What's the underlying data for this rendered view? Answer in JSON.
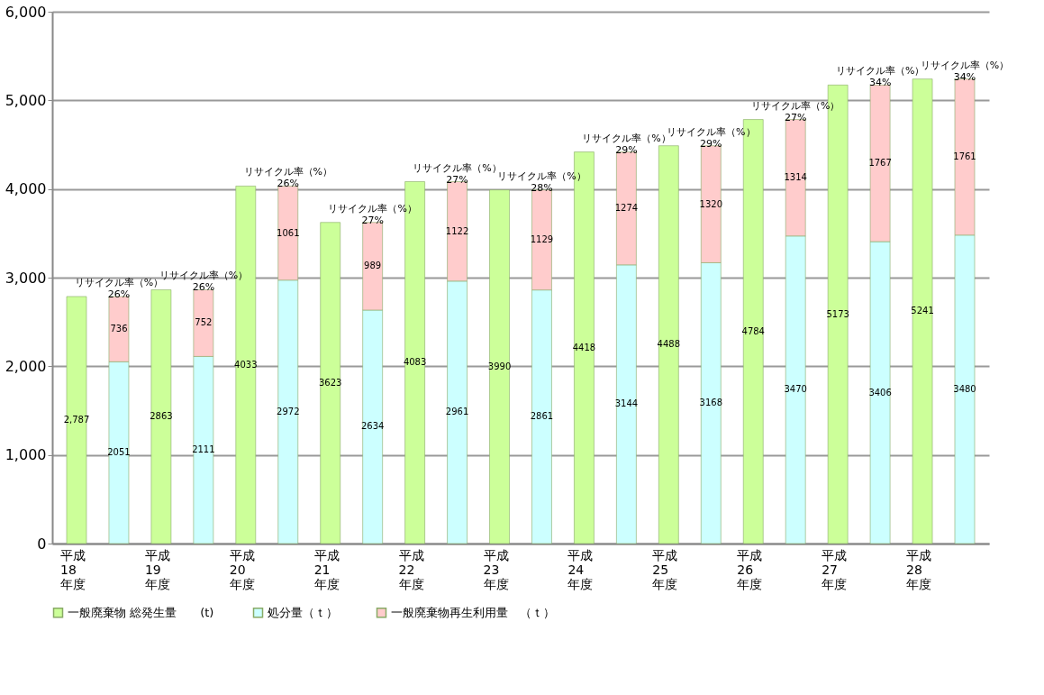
{
  "chart_data": {
    "type": "bar",
    "stacked": true,
    "categories": [
      "平成\n18\n年度",
      null,
      "平成\n19\n年度",
      null,
      "平成\n20\n年度",
      null,
      "平成\n21\n年度",
      null,
      "平成\n22\n年度",
      null,
      "平成\n23\n年度",
      null,
      "平成\n24\n年度",
      null,
      "平成\n25\n年度",
      null,
      "平成\n26\n年度",
      null,
      "平成\n27\n年度",
      null,
      "平成\n28\n年度",
      null
    ],
    "series": [
      {
        "name": "一般廃棄物 総発生量　　(t)",
        "color": "#ccff99",
        "values": [
          2787,
          null,
          2863,
          null,
          4033,
          null,
          3623,
          null,
          4083,
          null,
          3990,
          null,
          4418,
          null,
          4488,
          null,
          4784,
          null,
          5173,
          null,
          5241,
          null
        ],
        "value_labels": [
          "2,787",
          null,
          "2863",
          null,
          "4033",
          null,
          "3623",
          null,
          "4083",
          null,
          "3990",
          null,
          "4418",
          null,
          "4488",
          null,
          "4784",
          null,
          "5173",
          null,
          "5241",
          null
        ]
      },
      {
        "name": "処分量（ｔ）",
        "color": "#ccffff",
        "values": [
          null,
          2051,
          null,
          2111,
          null,
          2972,
          null,
          2634,
          null,
          2961,
          null,
          2861,
          null,
          3144,
          null,
          3168,
          null,
          3470,
          null,
          3406,
          null,
          3480
        ],
        "value_labels": [
          null,
          "2051",
          null,
          "2111",
          null,
          "2972",
          null,
          "2634",
          null,
          "2961",
          null,
          "2861",
          null,
          "3144",
          null,
          "3168",
          null,
          "3470",
          null,
          "3406",
          null,
          "3480"
        ]
      },
      {
        "name": "一般廃棄物再生利用量　（ｔ）",
        "color": "#ffcccc",
        "values": [
          null,
          736,
          null,
          752,
          null,
          1061,
          null,
          989,
          null,
          1122,
          null,
          1129,
          null,
          1274,
          null,
          1320,
          null,
          1314,
          null,
          1767,
          null,
          1761
        ],
        "value_labels": [
          null,
          "736",
          null,
          "752",
          null,
          "1061",
          null,
          "989",
          null,
          "1122",
          null,
          "1129",
          null,
          "1274",
          null,
          "1320",
          null,
          "1314",
          null,
          "1767",
          null,
          "1761"
        ]
      }
    ],
    "annotations": [
      {
        "text": "リサイクル率（%）\n26%",
        "y": 2787
      },
      {
        "text": "リサイクル率（%）\n26%",
        "y": 2863
      },
      {
        "text": "リサイクル率（%）\n26%",
        "y": 4033
      },
      {
        "text": "リサイクル率（%）\n27%",
        "y": 3623
      },
      {
        "text": "リサイクル率（%）\n27%",
        "y": 4083
      },
      {
        "text": "リサイクル率（%）\n28%",
        "y": 3990
      },
      {
        "text": "リサイクル率（%）\n29%",
        "y": 4418
      },
      {
        "text": "リサイクル率（%）\n29%",
        "y": 4488
      },
      {
        "text": "リサイクル率（%）\n27%",
        "y": 4784
      },
      {
        "text": "リサイクル率（%）\n34%",
        "y": 5173
      },
      {
        "text": "リサイクル率（%）\n34%",
        "y": 5241
      }
    ],
    "ylim": [
      0,
      6000
    ],
    "yticks": [
      {
        "value": 0,
        "label": "0"
      },
      {
        "value": 1000,
        "label": "1,000"
      },
      {
        "value": 2000,
        "label": "2,000"
      },
      {
        "value": 3000,
        "label": "3,000"
      },
      {
        "value": 4000,
        "label": "4,000"
      },
      {
        "value": 5000,
        "label": "5,000"
      },
      {
        "value": 6000,
        "label": "6,000"
      }
    ],
    "grid": "y",
    "legend": "bottom"
  }
}
